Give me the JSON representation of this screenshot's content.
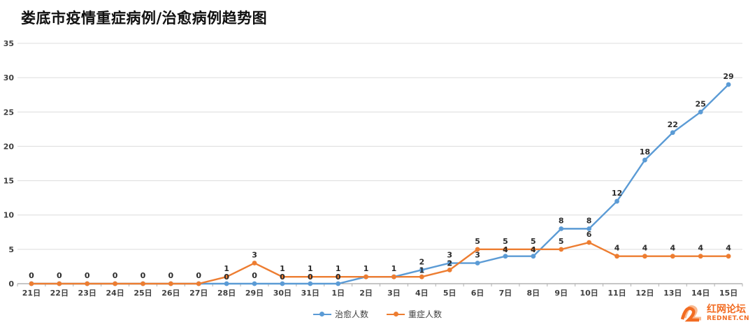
{
  "title": "娄底市疫情重症病例/治愈病例趋势图",
  "watermark": {
    "name": "红网论坛",
    "url": "REDNET.CN"
  },
  "chart_data": {
    "type": "line",
    "title": "娄底市疫情重症病例/治愈病例趋势图",
    "categories": [
      "21日",
      "22日",
      "23日",
      "24日",
      "25日",
      "26日",
      "27日",
      "28日",
      "29日",
      "30日",
      "31日",
      "1日",
      "2日",
      "3日",
      "4日",
      "5日",
      "6日",
      "7日",
      "8日",
      "9日",
      "10日",
      "11日",
      "12日",
      "13日",
      "14日",
      "15日"
    ],
    "series": [
      {
        "name": "治愈人数",
        "color": "#5B9BD5",
        "values": [
          0,
          0,
          0,
          0,
          0,
          0,
          0,
          0,
          0,
          0,
          0,
          0,
          1,
          1,
          2,
          3,
          3,
          4,
          4,
          8,
          8,
          12,
          18,
          22,
          25,
          29
        ]
      },
      {
        "name": "重症人数",
        "color": "#ED7D31",
        "values": [
          0,
          0,
          0,
          0,
          0,
          0,
          0,
          1,
          3,
          1,
          1,
          1,
          1,
          1,
          1,
          2,
          5,
          5,
          5,
          5,
          6,
          4,
          4,
          4,
          4,
          4
        ]
      }
    ],
    "xlabel": "",
    "ylabel": "",
    "ylim": [
      0,
      35
    ],
    "yticks": [
      0,
      5,
      10,
      15,
      20,
      25,
      30,
      35
    ],
    "grid": true,
    "data_labels": true,
    "legend_position": "bottom"
  }
}
